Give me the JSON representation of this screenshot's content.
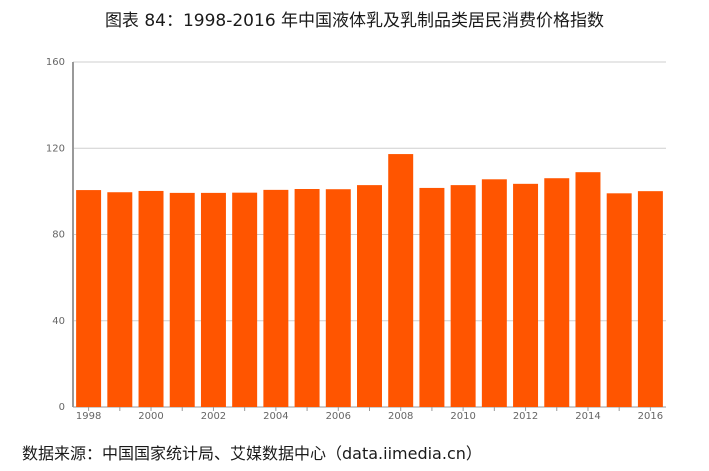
{
  "title": "图表 84：1998-2016 年中国液体乳及乳制品类居民消费价格指数",
  "source": "数据来源：中国国家统计局、艾媒数据中心（data.iimedia.cn）",
  "colors": {
    "bar": "#FF5500",
    "grid": "#cfcfcf",
    "axis": "#999999"
  },
  "chart_data": {
    "type": "bar",
    "title": "图表 84：1998-2016 年中国液体乳及乳制品类居民消费价格指数",
    "xlabel": "",
    "ylabel": "",
    "categories": [
      "1998",
      "1999",
      "2000",
      "2001",
      "2002",
      "2003",
      "2004",
      "2005",
      "2006",
      "2007",
      "2008",
      "2009",
      "2010",
      "2011",
      "2012",
      "2013",
      "2014",
      "2015",
      "2016"
    ],
    "x_tick_labels": [
      "1998",
      "2000",
      "2002",
      "2004",
      "2006",
      "2008",
      "2010",
      "2012",
      "2014",
      "2016"
    ],
    "values": [
      100.6,
      99.6,
      100.2,
      99.3,
      99.3,
      99.4,
      100.7,
      101.1,
      101.0,
      102.9,
      117.3,
      101.6,
      102.9,
      105.6,
      103.5,
      106.1,
      108.9,
      99.1,
      100.1
    ],
    "ylim": [
      0,
      160
    ],
    "yticks": [
      0,
      40,
      80,
      120,
      160
    ],
    "grid": true,
    "legend": "none"
  }
}
